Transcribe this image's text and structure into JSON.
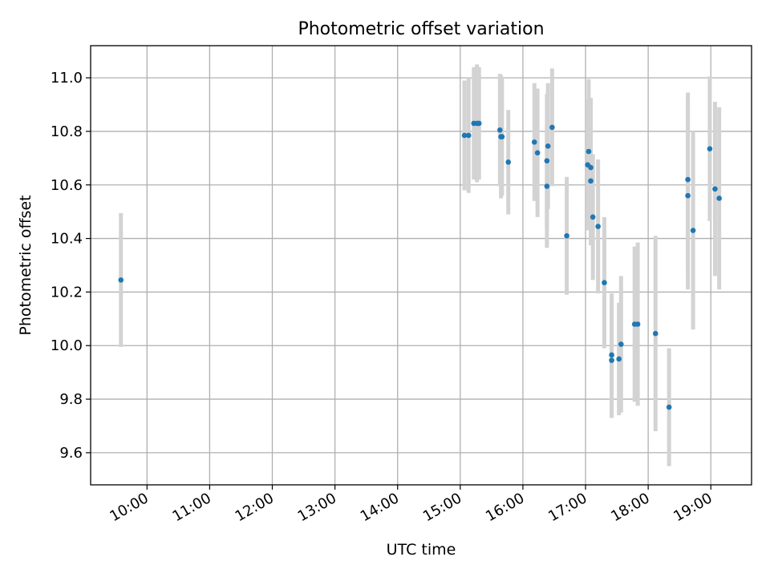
{
  "chart_data": {
    "type": "scatter",
    "title": "Photometric offset variation",
    "xlabel": "UTC time",
    "ylabel": "Photometric offset",
    "x_ticks": [
      "10:00",
      "11:00",
      "12:00",
      "13:00",
      "14:00",
      "15:00",
      "16:00",
      "17:00",
      "18:00",
      "19:00"
    ],
    "xlim": [
      "09:06",
      "19:39"
    ],
    "ylim": [
      9.48,
      11.12
    ],
    "y_ticks": [
      9.6,
      9.8,
      10.0,
      10.2,
      10.4,
      10.6,
      10.8,
      11.0
    ],
    "grid": true,
    "colors": {
      "point": "#1f77b4",
      "errorbar": "#d3d3d3",
      "grid": "#b0b0b0"
    },
    "points": [
      {
        "x": "09:35",
        "y": 10.245,
        "err": 0.25
      },
      {
        "x": "15:04",
        "y": 10.785,
        "err": 0.205
      },
      {
        "x": "15:08",
        "y": 10.785,
        "err": 0.215
      },
      {
        "x": "15:13",
        "y": 10.83,
        "err": 0.21
      },
      {
        "x": "15:16",
        "y": 10.83,
        "err": 0.22
      },
      {
        "x": "15:18",
        "y": 10.83,
        "err": 0.21
      },
      {
        "x": "15:38",
        "y": 10.805,
        "err": 0.21
      },
      {
        "x": "15:39",
        "y": 10.78,
        "err": 0.23
      },
      {
        "x": "15:40",
        "y": 10.78,
        "err": 0.22
      },
      {
        "x": "15:46",
        "y": 10.685,
        "err": 0.195
      },
      {
        "x": "16:11",
        "y": 10.76,
        "err": 0.22
      },
      {
        "x": "16:14",
        "y": 10.72,
        "err": 0.24
      },
      {
        "x": "16:23",
        "y": 10.595,
        "err": 0.23
      },
      {
        "x": "16:23",
        "y": 10.69,
        "err": 0.25
      },
      {
        "x": "16:24",
        "y": 10.745,
        "err": 0.235
      },
      {
        "x": "16:28",
        "y": 10.815,
        "err": 0.22
      },
      {
        "x": "16:42",
        "y": 10.41,
        "err": 0.22
      },
      {
        "x": "17:02",
        "y": 10.675,
        "err": 0.245
      },
      {
        "x": "17:03",
        "y": 10.725,
        "err": 0.27
      },
      {
        "x": "17:05",
        "y": 10.665,
        "err": 0.26
      },
      {
        "x": "17:05",
        "y": 10.615,
        "err": 0.24
      },
      {
        "x": "17:07",
        "y": 10.48,
        "err": 0.235
      },
      {
        "x": "17:12",
        "y": 10.445,
        "err": 0.25
      },
      {
        "x": "17:18",
        "y": 10.235,
        "err": 0.245
      },
      {
        "x": "17:25",
        "y": 9.945,
        "err": 0.215
      },
      {
        "x": "17:25",
        "y": 9.965,
        "err": 0.23
      },
      {
        "x": "17:32",
        "y": 9.95,
        "err": 0.21
      },
      {
        "x": "17:34",
        "y": 10.005,
        "err": 0.255
      },
      {
        "x": "17:47",
        "y": 10.08,
        "err": 0.29
      },
      {
        "x": "17:50",
        "y": 10.08,
        "err": 0.305
      },
      {
        "x": "18:07",
        "y": 10.045,
        "err": 0.365
      },
      {
        "x": "18:20",
        "y": 9.77,
        "err": 0.22
      },
      {
        "x": "18:38",
        "y": 10.62,
        "err": 0.325
      },
      {
        "x": "18:38",
        "y": 10.56,
        "err": 0.35
      },
      {
        "x": "18:43",
        "y": 10.43,
        "err": 0.37
      },
      {
        "x": "18:59",
        "y": 10.735,
        "err": 0.27
      },
      {
        "x": "19:04",
        "y": 10.585,
        "err": 0.325
      },
      {
        "x": "19:08",
        "y": 10.55,
        "err": 0.34
      }
    ]
  }
}
